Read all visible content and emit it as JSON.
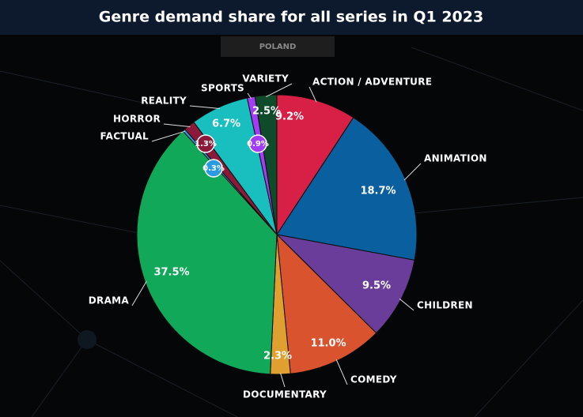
{
  "chart_data": {
    "type": "pie",
    "title": "Genre demand share for all series in Q1 2023",
    "subtitle": "POLAND",
    "categories": [
      "ACTION / ADVENTURE",
      "ANIMATION",
      "CHILDREN",
      "COMEDY",
      "DOCUMENTARY",
      "DRAMA",
      "FACTUAL",
      "HORROR",
      "REALITY",
      "SPORTS",
      "VARIETY"
    ],
    "values": [
      9.2,
      18.7,
      9.5,
      11.0,
      2.3,
      37.5,
      0.3,
      1.3,
      6.7,
      0.9,
      2.5
    ],
    "value_labels": [
      "9.2%",
      "18.7%",
      "9.5%",
      "11.0%",
      "2.3%",
      "37.5%",
      "0.3%",
      "1.3%",
      "6.7%",
      "0.9%",
      "2.5%"
    ],
    "colors": [
      "#d81f45",
      "#0a5f9e",
      "#6a3d9a",
      "#d9532e",
      "#e0a030",
      "#11a85a",
      "#2a9be0",
      "#8b1a3a",
      "#19bfbf",
      "#a23cf5",
      "#0f4a2a"
    ]
  }
}
